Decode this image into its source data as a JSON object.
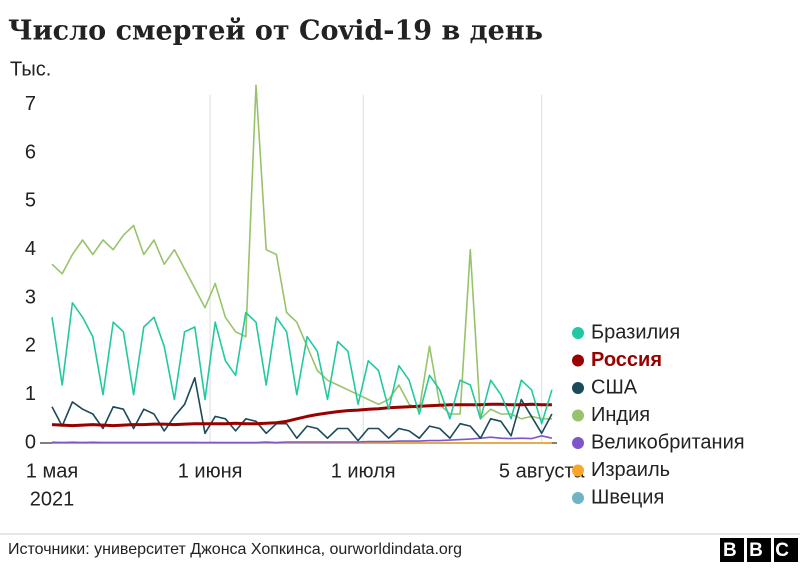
{
  "chart_data": {
    "type": "line",
    "title": "Число смертей от Covid-19 в день",
    "y_label": "Тыс.",
    "x_year_label": "2021",
    "source": "Источники: университет Джонса Хопкинса, ourworldindata.org",
    "logo": "BBC",
    "x": [
      "2021-05-01",
      "2021-05-03",
      "2021-05-05",
      "2021-05-07",
      "2021-05-09",
      "2021-05-11",
      "2021-05-13",
      "2021-05-15",
      "2021-05-17",
      "2021-05-19",
      "2021-05-21",
      "2021-05-23",
      "2021-05-25",
      "2021-05-27",
      "2021-05-29",
      "2021-05-31",
      "2021-06-02",
      "2021-06-04",
      "2021-06-06",
      "2021-06-08",
      "2021-06-10",
      "2021-06-12",
      "2021-06-14",
      "2021-06-16",
      "2021-06-18",
      "2021-06-20",
      "2021-06-22",
      "2021-06-24",
      "2021-06-26",
      "2021-06-28",
      "2021-06-30",
      "2021-07-02",
      "2021-07-04",
      "2021-07-06",
      "2021-07-08",
      "2021-07-10",
      "2021-07-12",
      "2021-07-14",
      "2021-07-16",
      "2021-07-18",
      "2021-07-20",
      "2021-07-22",
      "2021-07-24",
      "2021-07-26",
      "2021-07-28",
      "2021-07-30",
      "2021-08-01",
      "2021-08-03",
      "2021-08-05",
      "2021-08-07"
    ],
    "xlim": [
      "2021-05-01",
      "2021-08-08"
    ],
    "xticks": [
      {
        "value": "2021-05-01",
        "label": "1 мая"
      },
      {
        "value": "2021-06-01",
        "label": "1 июня"
      },
      {
        "value": "2021-07-01",
        "label": "1 июля"
      },
      {
        "value": "2021-08-05",
        "label": "5 августа"
      }
    ],
    "ylim": [
      0,
      7.2
    ],
    "yticks": [
      0,
      1,
      2,
      3,
      4,
      5,
      6,
      7
    ],
    "series": [
      {
        "name": "Бразилия",
        "color": "#22c9a0",
        "values": [
          2.6,
          1.2,
          2.9,
          2.6,
          2.2,
          1.0,
          2.5,
          2.3,
          1.0,
          2.4,
          2.6,
          2.0,
          0.9,
          2.3,
          2.4,
          0.9,
          2.5,
          1.7,
          1.4,
          2.7,
          2.5,
          1.2,
          2.6,
          2.3,
          1.0,
          2.2,
          1.9,
          0.9,
          2.1,
          1.9,
          0.8,
          1.7,
          1.5,
          0.7,
          1.6,
          1.3,
          0.6,
          1.4,
          1.1,
          0.5,
          1.3,
          1.2,
          0.5,
          1.3,
          1.0,
          0.5,
          1.3,
          1.1,
          0.4,
          1.1
        ]
      },
      {
        "name": "Россия",
        "color": "#990000",
        "values": [
          0.38,
          0.37,
          0.36,
          0.37,
          0.38,
          0.37,
          0.36,
          0.37,
          0.38,
          0.38,
          0.39,
          0.39,
          0.38,
          0.39,
          0.4,
          0.4,
          0.4,
          0.4,
          0.41,
          0.4,
          0.4,
          0.41,
          0.42,
          0.45,
          0.5,
          0.55,
          0.59,
          0.62,
          0.65,
          0.67,
          0.68,
          0.7,
          0.71,
          0.73,
          0.74,
          0.75,
          0.76,
          0.77,
          0.78,
          0.79,
          0.79,
          0.79,
          0.79,
          0.8,
          0.8,
          0.79,
          0.79,
          0.8,
          0.79,
          0.79
        ]
      },
      {
        "name": "США",
        "color": "#1b4a5a",
        "values": [
          0.75,
          0.35,
          0.85,
          0.7,
          0.6,
          0.3,
          0.75,
          0.7,
          0.3,
          0.7,
          0.6,
          0.25,
          0.55,
          0.8,
          1.35,
          0.2,
          0.55,
          0.5,
          0.25,
          0.5,
          0.45,
          0.2,
          0.4,
          0.4,
          0.1,
          0.35,
          0.3,
          0.1,
          0.3,
          0.3,
          0.05,
          0.3,
          0.3,
          0.1,
          0.3,
          0.25,
          0.1,
          0.35,
          0.3,
          0.1,
          0.4,
          0.35,
          0.1,
          0.5,
          0.45,
          0.15,
          0.9,
          0.55,
          0.2,
          0.6
        ]
      },
      {
        "name": "Индия",
        "color": "#98c36b",
        "values": [
          3.7,
          3.5,
          3.9,
          4.2,
          3.9,
          4.2,
          4.0,
          4.3,
          4.5,
          3.9,
          4.2,
          3.7,
          4.0,
          3.6,
          3.2,
          2.8,
          3.3,
          2.6,
          2.3,
          2.2,
          7.4,
          4.0,
          3.9,
          2.7,
          2.5,
          2.0,
          1.5,
          1.3,
          1.2,
          1.1,
          1.0,
          0.9,
          0.8,
          0.9,
          1.2,
          0.8,
          0.7,
          2.0,
          0.8,
          0.6,
          0.6,
          4.0,
          0.5,
          0.7,
          0.6,
          0.6,
          0.5,
          0.55,
          0.5,
          0.5
        ]
      },
      {
        "name": "Великобритания",
        "color": "#7e56c9",
        "values": [
          0.01,
          0.01,
          0.01,
          0.01,
          0.01,
          0.01,
          0.01,
          0.01,
          0.01,
          0.01,
          0.01,
          0.01,
          0.01,
          0.01,
          0.01,
          0.01,
          0.01,
          0.01,
          0.01,
          0.01,
          0.01,
          0.02,
          0.01,
          0.02,
          0.02,
          0.02,
          0.02,
          0.02,
          0.02,
          0.02,
          0.02,
          0.03,
          0.03,
          0.03,
          0.04,
          0.04,
          0.04,
          0.05,
          0.05,
          0.06,
          0.07,
          0.08,
          0.1,
          0.12,
          0.1,
          0.09,
          0.1,
          0.09,
          0.15,
          0.1
        ]
      },
      {
        "name": "Израиль",
        "color": "#fca52a",
        "values": [
          0,
          0,
          0,
          0,
          0,
          0,
          0,
          0,
          0,
          0,
          0,
          0,
          0,
          0,
          0,
          0,
          0,
          0,
          0,
          0,
          0,
          0,
          0,
          0,
          0,
          0,
          0,
          0,
          0,
          0,
          0,
          0,
          0,
          0,
          0,
          0,
          0,
          0,
          0,
          0,
          0,
          0,
          0,
          0,
          0,
          0,
          0,
          0,
          0,
          0.01
        ]
      },
      {
        "name": "Швеция",
        "color": "#6fb3c9",
        "values": [
          0.02,
          0.01,
          0.02,
          0.01,
          0.02,
          0.01,
          0.01,
          0.01,
          0.01,
          0.01,
          0.01,
          0.01,
          0.01,
          0.01,
          0.01,
          0,
          0.01,
          0,
          0,
          0,
          0,
          0,
          0,
          0,
          0,
          0,
          0,
          0,
          0,
          0,
          0,
          0,
          0,
          0,
          0,
          0,
          0,
          0,
          0,
          0,
          0,
          0,
          0,
          0,
          0,
          0,
          0,
          0,
          0,
          0
        ]
      }
    ],
    "highlight": "Россия"
  }
}
